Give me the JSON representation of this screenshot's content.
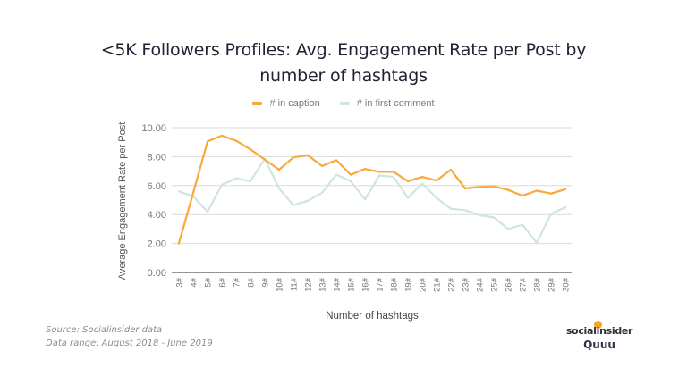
{
  "title_lines": [
    "<5K Followers Profiles: Avg. Engagement Rate per Post by",
    "number of hashtags"
  ],
  "source_lines": [
    "Source: Socialinsider data",
    "Data range: August 2018 - June 2019"
  ],
  "logos": {
    "primary": "socialinsider",
    "secondary": "Quuu"
  },
  "chart_data": {
    "type": "line",
    "title": "<5K Followers Profiles: Avg. Engagement Rate per Post by number of hashtags",
    "xlabel": "Number of hashtags",
    "ylabel": "Average Engagement Rate per Post",
    "ylim": [
      0,
      10
    ],
    "yticks": [
      "0.00",
      "2.00",
      "4.00",
      "6.00",
      "8.00",
      "10.00"
    ],
    "ytick_values": [
      0,
      2,
      4,
      6,
      8,
      10
    ],
    "grid": true,
    "legend_position": "top-center",
    "categories": [
      "3#",
      "4#",
      "5#",
      "6#",
      "7#",
      "8#",
      "9#",
      "10#",
      "11#",
      "12#",
      "13#",
      "14#",
      "15#",
      "16#",
      "17#",
      "18#",
      "19#",
      "20#",
      "21#",
      "22#",
      "23#",
      "24#",
      "25#",
      "26#",
      "27#",
      "28#",
      "29#",
      "30#"
    ],
    "series": [
      {
        "name": "# in caption",
        "color": "#f9a83a",
        "values": [
          2.0,
          5.5,
          9.05,
          9.45,
          9.1,
          8.5,
          7.8,
          7.1,
          7.95,
          8.1,
          7.35,
          7.75,
          6.75,
          7.15,
          6.95,
          6.95,
          6.3,
          6.6,
          6.35,
          7.1,
          5.8,
          5.9,
          5.95,
          5.7,
          5.3,
          5.65,
          5.45,
          5.75
        ]
      },
      {
        "name": "# in first comment",
        "color": "#cfe6da",
        "values": [
          5.6,
          5.25,
          4.2,
          6.05,
          6.5,
          6.3,
          7.85,
          5.8,
          4.65,
          4.95,
          5.5,
          6.75,
          6.3,
          5.05,
          6.7,
          6.6,
          5.15,
          6.15,
          5.15,
          4.4,
          4.3,
          3.95,
          3.8,
          3.0,
          3.3,
          2.05,
          4.05,
          4.5
        ]
      }
    ]
  }
}
